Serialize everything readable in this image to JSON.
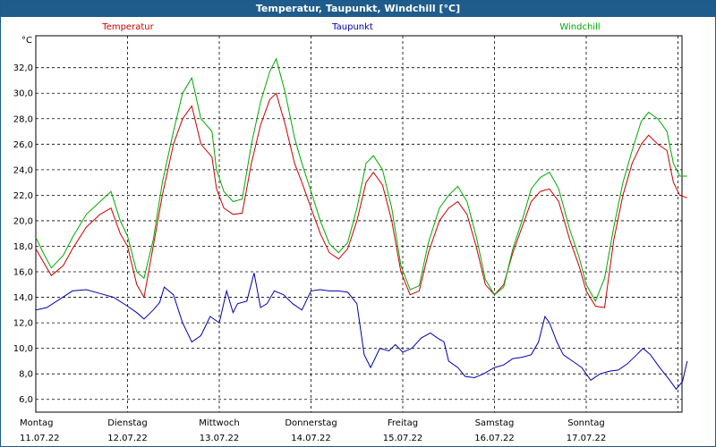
{
  "chart_data": {
    "type": "line",
    "title": "Temperatur, Taupunkt, Windchill [°C]",
    "ylabel": "°C",
    "ylim": [
      5,
      34.5
    ],
    "yticks": [
      "6,0",
      "8,0",
      "10,0",
      "12,0",
      "14,0",
      "16,0",
      "18,0",
      "20,0",
      "22,0",
      "24,0",
      "26,0",
      "28,0",
      "30,0",
      "32,0"
    ],
    "ytick_values": [
      6,
      8,
      10,
      12,
      14,
      16,
      18,
      20,
      22,
      24,
      26,
      28,
      30,
      32
    ],
    "xlim": [
      0,
      7.2
    ],
    "x_day_labels": [
      {
        "day": "Montag",
        "date": "11.07.22"
      },
      {
        "day": "Dienstag",
        "date": "12.07.22"
      },
      {
        "day": "Mittwoch",
        "date": "13.07.22"
      },
      {
        "day": "Donnerstag",
        "date": "14.07.22"
      },
      {
        "day": "Freitag",
        "date": "15.07.22"
      },
      {
        "day": "Samstag",
        "date": "16.07.22"
      },
      {
        "day": "Sonntag",
        "date": "17.07.22"
      }
    ],
    "grid": true,
    "legend_position": "top",
    "series": [
      {
        "name": "Temperatur",
        "color": "#cc0000",
        "x": [
          0,
          0.08,
          0.17,
          0.3,
          0.4,
          0.55,
          0.7,
          0.82,
          0.92,
          1.0,
          1.1,
          1.18,
          1.28,
          1.38,
          1.5,
          1.6,
          1.7,
          1.8,
          1.92,
          1.97,
          2.05,
          2.15,
          2.25,
          2.35,
          2.45,
          2.55,
          2.62,
          2.72,
          2.82,
          2.9,
          3.0,
          3.1,
          3.2,
          3.3,
          3.4,
          3.5,
          3.6,
          3.68,
          3.78,
          3.88,
          3.98,
          4.08,
          4.18,
          4.28,
          4.4,
          4.5,
          4.6,
          4.7,
          4.8,
          4.9,
          5.0,
          5.1,
          5.2,
          5.3,
          5.4,
          5.5,
          5.6,
          5.7,
          5.82,
          5.92,
          6.0,
          6.1,
          6.2,
          6.3,
          6.4,
          6.5,
          6.6,
          6.68,
          6.78,
          6.88,
          6.95,
          7.02,
          7.1
        ],
        "values": [
          17.8,
          16.8,
          15.7,
          16.5,
          17.8,
          19.5,
          20.5,
          21.0,
          19.0,
          18.0,
          15.0,
          14.0,
          18.0,
          22.0,
          26.0,
          28.0,
          29.0,
          26.0,
          25.0,
          22.5,
          21.0,
          20.5,
          20.6,
          24.5,
          27.5,
          29.5,
          30.0,
          27.5,
          24.5,
          23.0,
          21.0,
          19.0,
          17.5,
          17.0,
          17.8,
          20.0,
          23.0,
          23.8,
          22.8,
          20.0,
          16.0,
          14.2,
          14.5,
          17.5,
          20.0,
          21.0,
          21.5,
          20.5,
          18.0,
          15.0,
          14.2,
          15.0,
          17.5,
          19.5,
          21.5,
          22.3,
          22.5,
          21.5,
          18.5,
          16.5,
          14.5,
          13.3,
          13.2,
          18.5,
          22.0,
          24.5,
          26.0,
          26.7,
          26.0,
          25.5,
          23.0,
          22.0,
          21.8
        ]
      },
      {
        "name": "Taupunkt",
        "color": "#0000aa",
        "x": [
          0,
          0.12,
          0.25,
          0.4,
          0.55,
          0.7,
          0.85,
          1.0,
          1.1,
          1.18,
          1.28,
          1.35,
          1.4,
          1.5,
          1.6,
          1.7,
          1.8,
          1.9,
          2.0,
          2.08,
          2.15,
          2.2,
          2.3,
          2.38,
          2.45,
          2.52,
          2.6,
          2.7,
          2.8,
          2.9,
          3.0,
          3.1,
          3.2,
          3.3,
          3.4,
          3.5,
          3.58,
          3.65,
          3.75,
          3.85,
          3.92,
          4.0,
          4.1,
          4.2,
          4.3,
          4.38,
          4.45,
          4.5,
          4.6,
          4.68,
          4.78,
          4.88,
          5.0,
          5.1,
          5.2,
          5.3,
          5.4,
          5.48,
          5.55,
          5.6,
          5.68,
          5.75,
          5.85,
          5.95,
          6.05,
          6.15,
          6.25,
          6.35,
          6.45,
          6.55,
          6.62,
          6.7,
          6.8,
          6.9,
          6.98,
          7.05,
          7.1
        ],
        "values": [
          13.0,
          13.2,
          13.8,
          14.5,
          14.6,
          14.3,
          14.0,
          13.3,
          12.8,
          12.3,
          13.0,
          13.6,
          14.8,
          14.2,
          12.0,
          10.5,
          11.0,
          12.5,
          12.0,
          14.5,
          12.8,
          13.5,
          13.7,
          15.9,
          13.2,
          13.5,
          14.5,
          14.2,
          13.5,
          13.0,
          14.5,
          14.6,
          14.5,
          14.5,
          14.4,
          13.5,
          9.5,
          8.5,
          10.0,
          9.8,
          10.3,
          9.7,
          10.0,
          10.8,
          11.2,
          10.8,
          10.5,
          9.0,
          8.5,
          7.8,
          7.7,
          8.0,
          8.5,
          8.7,
          9.2,
          9.3,
          9.5,
          10.5,
          12.5,
          12.0,
          10.5,
          9.5,
          9.0,
          8.5,
          7.5,
          8.0,
          8.2,
          8.3,
          8.8,
          9.5,
          10.0,
          9.5,
          8.5,
          7.6,
          6.8,
          7.4,
          9.0
        ]
      },
      {
        "name": "Windchill",
        "color": "#00aa00",
        "x": [
          0,
          0.08,
          0.17,
          0.3,
          0.4,
          0.55,
          0.7,
          0.82,
          0.92,
          1.0,
          1.1,
          1.18,
          1.28,
          1.38,
          1.5,
          1.6,
          1.7,
          1.8,
          1.92,
          1.97,
          2.05,
          2.15,
          2.25,
          2.35,
          2.45,
          2.55,
          2.62,
          2.72,
          2.82,
          2.9,
          3.0,
          3.1,
          3.2,
          3.3,
          3.4,
          3.5,
          3.6,
          3.68,
          3.78,
          3.88,
          3.98,
          4.08,
          4.18,
          4.28,
          4.4,
          4.5,
          4.6,
          4.7,
          4.8,
          4.9,
          5.0,
          5.1,
          5.2,
          5.3,
          5.4,
          5.5,
          5.6,
          5.7,
          5.82,
          5.92,
          6.0,
          6.1,
          6.2,
          6.3,
          6.4,
          6.5,
          6.6,
          6.68,
          6.78,
          6.88,
          6.95,
          7.02,
          7.1
        ],
        "values": [
          18.7,
          17.5,
          16.3,
          17.3,
          18.7,
          20.5,
          21.5,
          22.3,
          20.0,
          18.8,
          16.0,
          15.5,
          18.5,
          23.0,
          27.0,
          30.0,
          31.2,
          28.0,
          27.0,
          24.0,
          22.3,
          21.5,
          21.7,
          26.0,
          29.3,
          31.7,
          32.7,
          30.0,
          26.5,
          24.5,
          22.3,
          20.0,
          18.2,
          17.5,
          18.3,
          21.0,
          24.5,
          25.1,
          24.0,
          21.0,
          16.5,
          14.6,
          14.9,
          18.3,
          21.0,
          22.0,
          22.7,
          21.5,
          18.8,
          15.4,
          14.2,
          14.8,
          17.8,
          20.0,
          22.5,
          23.4,
          23.8,
          22.5,
          19.3,
          17.2,
          15.0,
          13.7,
          15.5,
          19.5,
          23.0,
          25.5,
          27.8,
          28.5,
          28.0,
          27.0,
          24.5,
          23.5,
          23.5
        ]
      }
    ]
  }
}
